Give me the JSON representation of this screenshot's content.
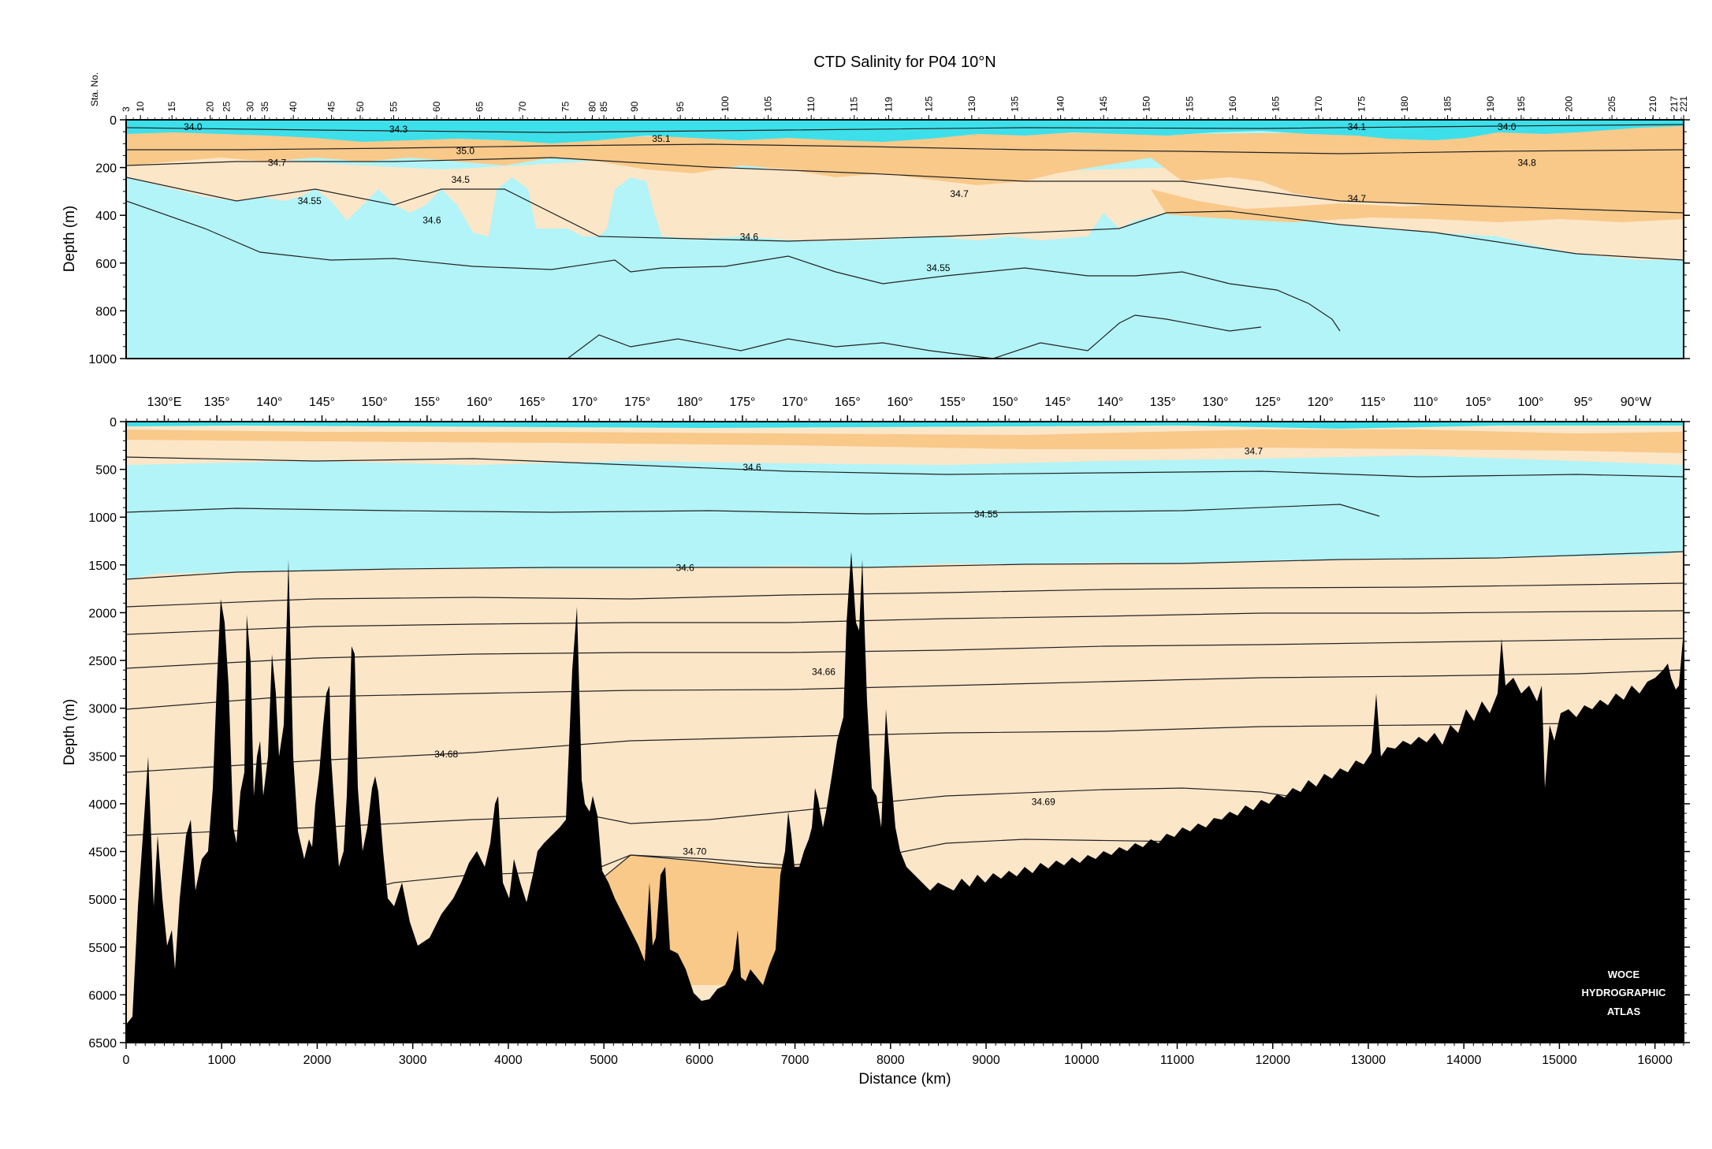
{
  "chart_data": [
    {
      "type": "contour",
      "panel": "upper",
      "title": "CTD Salinity for P04 10°N",
      "xlabel": "",
      "ylabel": "Depth (m)",
      "xlim": [
        0,
        16300
      ],
      "ylim": [
        1000,
        0
      ],
      "y_ticks": [
        0,
        200,
        400,
        600,
        800,
        1000
      ],
      "station_axis_label": "Sta. No.",
      "station_labels": [
        {
          "label": "3",
          "x": 0
        },
        {
          "label": "10",
          "x": 150
        },
        {
          "label": "15",
          "x": 480
        },
        {
          "label": "20",
          "x": 880
        },
        {
          "label": "25",
          "x": 1050
        },
        {
          "label": "30",
          "x": 1300
        },
        {
          "label": "35",
          "x": 1450
        },
        {
          "label": "40",
          "x": 1750
        },
        {
          "label": "45",
          "x": 2150
        },
        {
          "label": "50",
          "x": 2450
        },
        {
          "label": "55",
          "x": 2800
        },
        {
          "label": "60",
          "x": 3250
        },
        {
          "label": "65",
          "x": 3700
        },
        {
          "label": "70",
          "x": 4150
        },
        {
          "label": "75",
          "x": 4600
        },
        {
          "label": "80",
          "x": 4880
        },
        {
          "label": "85",
          "x": 5000
        },
        {
          "label": "90",
          "x": 5320
        },
        {
          "label": "95",
          "x": 5800
        },
        {
          "label": "100",
          "x": 6270
        },
        {
          "label": "105",
          "x": 6720
        },
        {
          "label": "110",
          "x": 7170
        },
        {
          "label": "115",
          "x": 7620
        },
        {
          "label": "119",
          "x": 7980
        },
        {
          "label": "125",
          "x": 8400
        },
        {
          "label": "130",
          "x": 8850
        },
        {
          "label": "135",
          "x": 9300
        },
        {
          "label": "140",
          "x": 9780
        },
        {
          "label": "145",
          "x": 10230
        },
        {
          "label": "150",
          "x": 10680
        },
        {
          "label": "155",
          "x": 11130
        },
        {
          "label": "160",
          "x": 11580
        },
        {
          "label": "165",
          "x": 12030
        },
        {
          "label": "170",
          "x": 12480
        },
        {
          "label": "175",
          "x": 12930
        },
        {
          "label": "180",
          "x": 13380
        },
        {
          "label": "185",
          "x": 13830
        },
        {
          "label": "190",
          "x": 14280
        },
        {
          "label": "195",
          "x": 14600
        },
        {
          "label": "200",
          "x": 15100
        },
        {
          "label": "205",
          "x": 15550
        },
        {
          "label": "210",
          "x": 15980
        },
        {
          "label": "217",
          "x": 16200
        },
        {
          "label": "221",
          "x": 16300
        }
      ],
      "contour_labels": [
        {
          "text": "34.0",
          "x": 700,
          "depth": 30
        },
        {
          "text": "34.3",
          "x": 2850,
          "depth": 40
        },
        {
          "text": "35.0",
          "x": 3550,
          "depth": 130
        },
        {
          "text": "35.1",
          "x": 5600,
          "depth": 80
        },
        {
          "text": "34.1",
          "x": 12880,
          "depth": 30
        },
        {
          "text": "34.0",
          "x": 14450,
          "depth": 30
        },
        {
          "text": "34.7",
          "x": 1580,
          "depth": 180
        },
        {
          "text": "34.8",
          "x": 14660,
          "depth": 180
        },
        {
          "text": "34.5",
          "x": 3500,
          "depth": 250
        },
        {
          "text": "34.55",
          "x": 1920,
          "depth": 340
        },
        {
          "text": "34.6",
          "x": 3200,
          "depth": 420
        },
        {
          "text": "34.7",
          "x": 8720,
          "depth": 310
        },
        {
          "text": "34.7",
          "x": 12880,
          "depth": 330
        },
        {
          "text": "34.6",
          "x": 6520,
          "depth": 490
        },
        {
          "text": "34.55",
          "x": 8500,
          "depth": 620
        }
      ],
      "colors": {
        "fresh": "#3de0ea",
        "low": "#b2f4f8",
        "mid": "#fce6c8",
        "high": "#f9c98a",
        "higher": "#f0b060",
        "contour": "#222222"
      }
    },
    {
      "type": "contour",
      "panel": "lower",
      "title": "",
      "xlabel": "Distance (km)",
      "ylabel": "Depth (m)",
      "xlim": [
        0,
        16300
      ],
      "ylim": [
        6500,
        0
      ],
      "x_ticks": [
        0,
        1000,
        2000,
        3000,
        4000,
        5000,
        6000,
        7000,
        8000,
        9000,
        10000,
        11000,
        12000,
        13000,
        14000,
        15000,
        16000
      ],
      "y_ticks": [
        0,
        500,
        1000,
        1500,
        2000,
        2500,
        3000,
        3500,
        4000,
        4500,
        5000,
        5500,
        6000,
        6500
      ],
      "longitude_labels": [
        {
          "label": "130°E",
          "x": 400
        },
        {
          "label": "135°",
          "x": 950
        },
        {
          "label": "140°",
          "x": 1500
        },
        {
          "label": "145°",
          "x": 2050
        },
        {
          "label": "150°",
          "x": 2600
        },
        {
          "label": "155°",
          "x": 3150
        },
        {
          "label": "160°",
          "x": 3700
        },
        {
          "label": "165°",
          "x": 4250
        },
        {
          "label": "170°",
          "x": 4800
        },
        {
          "label": "175°",
          "x": 5350
        },
        {
          "label": "180°",
          "x": 5900
        },
        {
          "label": "175°",
          "x": 6450
        },
        {
          "label": "170°",
          "x": 7000
        },
        {
          "label": "165°",
          "x": 7550
        },
        {
          "label": "160°",
          "x": 8100
        },
        {
          "label": "155°",
          "x": 8650
        },
        {
          "label": "150°",
          "x": 9200
        },
        {
          "label": "145°",
          "x": 9750
        },
        {
          "label": "140°",
          "x": 10300
        },
        {
          "label": "135°",
          "x": 10850
        },
        {
          "label": "130°",
          "x": 11400
        },
        {
          "label": "125°",
          "x": 11950
        },
        {
          "label": "120°",
          "x": 12500
        },
        {
          "label": "115°",
          "x": 13050
        },
        {
          "label": "110°",
          "x": 13600
        },
        {
          "label": "105°",
          "x": 14150
        },
        {
          "label": "100°",
          "x": 14700
        },
        {
          "label": "95°",
          "x": 15250
        },
        {
          "label": "90°W",
          "x": 15800
        }
      ],
      "contour_labels": [
        {
          "text": "34.7",
          "x": 11800,
          "depth": 310
        },
        {
          "text": "34.6",
          "x": 6550,
          "depth": 480
        },
        {
          "text": "34.55",
          "x": 9000,
          "depth": 970
        },
        {
          "text": "34.6",
          "x": 5850,
          "depth": 1530
        },
        {
          "text": "34.66",
          "x": 7300,
          "depth": 2620
        },
        {
          "text": "34.68",
          "x": 3350,
          "depth": 3480
        },
        {
          "text": "34.69",
          "x": 9600,
          "depth": 3980
        },
        {
          "text": "34.70",
          "x": 5950,
          "depth": 4500
        }
      ],
      "colors": {
        "fresh": "#3de0ea",
        "low": "#b2f4f8",
        "mid": "#fce6c8",
        "high": "#f9c98a",
        "bottom": "#000000",
        "contour": "#222222"
      }
    }
  ],
  "watermark": {
    "line1": "WOCE",
    "line2": "HYDROGRAPHIC",
    "line3": "ATLAS"
  }
}
